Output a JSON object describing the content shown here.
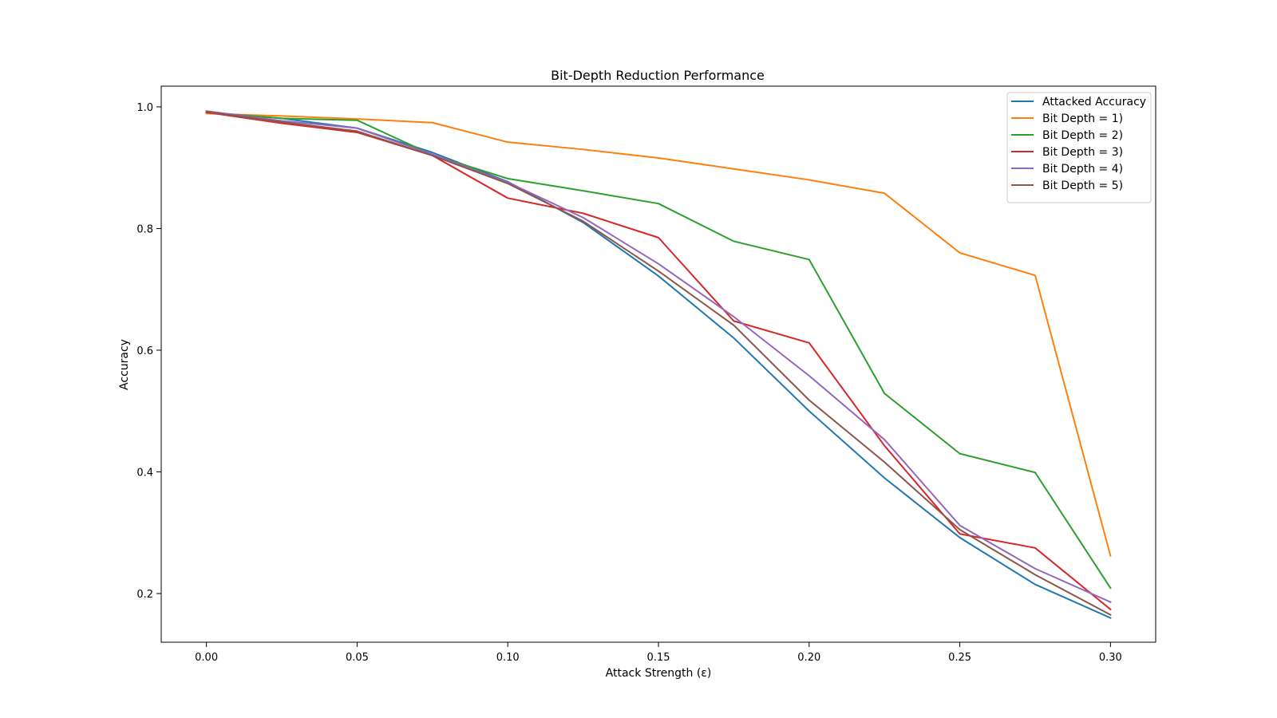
{
  "chart_data": {
    "type": "line",
    "title": "Bit-Depth Reduction Performance",
    "xlabel": "Attack Strength (ε)",
    "ylabel": "Accuracy",
    "xlim": [
      -0.015,
      0.315
    ],
    "ylim": [
      0.12,
      1.034
    ],
    "xticks": [
      0.0,
      0.05,
      0.1,
      0.15,
      0.2,
      0.25,
      0.3
    ],
    "xtick_labels": [
      "0.00",
      "0.05",
      "0.10",
      "0.15",
      "0.20",
      "0.25",
      "0.30"
    ],
    "yticks": [
      0.2,
      0.4,
      0.6,
      0.8,
      1.0
    ],
    "ytick_labels": [
      "0.2",
      "0.4",
      "0.6",
      "0.8",
      "1.0"
    ],
    "grid": false,
    "legend_position": "top-right",
    "x": [
      0.0,
      0.025,
      0.05,
      0.075,
      0.1,
      0.125,
      0.15,
      0.175,
      0.2,
      0.225,
      0.25,
      0.275,
      0.3
    ],
    "series": [
      {
        "name": "Attacked Accuracy",
        "color": "#1f77b4",
        "values": [
          0.991,
          0.981,
          0.965,
          0.925,
          0.877,
          0.81,
          0.722,
          0.62,
          0.5,
          0.39,
          0.292,
          0.215,
          0.16
        ]
      },
      {
        "name": "Bit Depth = 1)",
        "color": "#ff7f0e",
        "values": [
          0.989,
          0.985,
          0.98,
          0.974,
          0.942,
          0.93,
          0.916,
          0.898,
          0.88,
          0.858,
          0.76,
          0.723,
          0.262
        ]
      },
      {
        "name": "Bit Depth = 2)",
        "color": "#2ca02c",
        "values": [
          0.991,
          0.981,
          0.978,
          0.921,
          0.882,
          0.862,
          0.841,
          0.779,
          0.749,
          0.529,
          0.43,
          0.399,
          0.209
        ]
      },
      {
        "name": "Bit Depth = 3)",
        "color": "#d62728",
        "values": [
          0.991,
          0.973,
          0.958,
          0.92,
          0.85,
          0.825,
          0.785,
          0.648,
          0.612,
          0.443,
          0.298,
          0.275,
          0.174
        ]
      },
      {
        "name": "Bit Depth = 4)",
        "color": "#9467bd",
        "values": [
          0.993,
          0.977,
          0.965,
          0.922,
          0.876,
          0.818,
          0.742,
          0.655,
          0.558,
          0.453,
          0.312,
          0.241,
          0.186
        ]
      },
      {
        "name": "Bit Depth = 5)",
        "color": "#8c564b",
        "values": [
          0.992,
          0.975,
          0.96,
          0.92,
          0.874,
          0.812,
          0.73,
          0.641,
          0.518,
          0.416,
          0.305,
          0.231,
          0.165
        ]
      }
    ]
  }
}
